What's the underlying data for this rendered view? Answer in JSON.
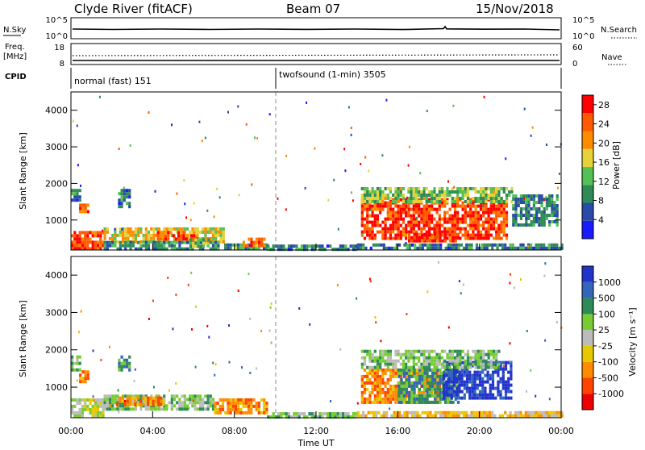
{
  "header": {
    "site": "Clyde River (fitACF)",
    "beam": "Beam 07",
    "date": "15/Nov/2018"
  },
  "strips": {
    "nsky": {
      "label": "N.Sky",
      "ticks_left": [
        "10^5",
        "10^0"
      ],
      "ticks_right": [
        "10^5",
        "10^0"
      ],
      "right_label": "N.Search"
    },
    "freq": {
      "label_top": "Freq.",
      "label_unit": "[MHz]",
      "ticks_left": [
        "18",
        "8"
      ],
      "ticks_right": [
        "60",
        "0"
      ],
      "right_label": "Nave"
    },
    "cpid": {
      "label": "CPID",
      "modes": [
        "normal (fast) 151",
        "twofsound (1-min) 3505"
      ]
    }
  },
  "colors": {
    "power": [
      "#1a1aff",
      "#2a4aa8",
      "#2e8b57",
      "#55c055",
      "#e6d23a",
      "#ff8c00",
      "#ff5a00",
      "#ff0000"
    ],
    "velocity": [
      "#2233cc",
      "#3366bb",
      "#2e8b57",
      "#77cc33",
      "#bbbbbb",
      "#e6c800",
      "#ff8c00",
      "#ff4400",
      "#ee0000"
    ]
  },
  "chart_data": [
    {
      "type": "heatmap",
      "name": "power",
      "ylabel": "Slant Range [km]",
      "yticks": [
        "1000",
        "2000",
        "3000",
        "4000"
      ],
      "ylim": [
        180,
        4500
      ],
      "xlim": [
        0,
        24
      ],
      "colorbar": {
        "label": "Power [dB]",
        "ticks": [
          "4",
          "8",
          "12",
          "16",
          "20",
          "24",
          "28"
        ],
        "range": [
          0,
          30
        ]
      },
      "cells": [
        {
          "t0": 0.0,
          "t1": 1.6,
          "r0": 250,
          "r1": 700,
          "v": 26
        },
        {
          "t0": 0.4,
          "t1": 0.9,
          "r0": 1200,
          "r1": 1450,
          "v": 22
        },
        {
          "t0": 0.0,
          "t1": 0.5,
          "r0": 1500,
          "r1": 1850,
          "v": 8
        },
        {
          "t0": 1.6,
          "t1": 7.5,
          "r0": 420,
          "r1": 800,
          "v": 17
        },
        {
          "t0": 1.6,
          "t1": 7.2,
          "r0": 250,
          "r1": 430,
          "v": 9
        },
        {
          "t0": 4.2,
          "t1": 6.2,
          "r0": 450,
          "r1": 700,
          "v": 25
        },
        {
          "t0": 2.3,
          "t1": 2.9,
          "r0": 1400,
          "r1": 1850,
          "v": 8
        },
        {
          "t0": 5.8,
          "t1": 6.8,
          "r0": 300,
          "r1": 500,
          "v": 12
        },
        {
          "t0": 7.5,
          "t1": 9.6,
          "r0": 250,
          "r1": 360,
          "v": 10
        },
        {
          "t0": 8.4,
          "t1": 9.5,
          "r0": 280,
          "r1": 520,
          "v": 23
        },
        {
          "t0": 9.6,
          "t1": 14.0,
          "r0": 220,
          "r1": 330,
          "v": 8
        },
        {
          "t0": 14.2,
          "t1": 21.3,
          "r0": 500,
          "r1": 1600,
          "v": 26
        },
        {
          "t0": 14.2,
          "t1": 21.6,
          "r0": 1500,
          "r1": 1900,
          "v": 14
        },
        {
          "t0": 16.5,
          "t1": 19.0,
          "r0": 400,
          "r1": 650,
          "v": 27
        },
        {
          "t0": 14.0,
          "t1": 24.0,
          "r0": 200,
          "r1": 360,
          "v": 8
        },
        {
          "t0": 21.6,
          "t1": 23.8,
          "r0": 900,
          "r1": 1700,
          "v": 9
        }
      ]
    },
    {
      "type": "heatmap",
      "name": "velocity",
      "ylabel": "Slant Range [km]",
      "yticks": [
        "1000",
        "2000",
        "3000",
        "4000"
      ],
      "ylim": [
        180,
        4500
      ],
      "xlim": [
        0,
        24
      ],
      "xticks": [
        "00:00",
        "04:00",
        "08:00",
        "12:00",
        "16:00",
        "20:00",
        "00:00"
      ],
      "xlabel": "Time UT",
      "colorbar": {
        "label": "Velocity [m s⁻¹]",
        "ticks": [
          "1000",
          "500",
          "100",
          "25",
          "-25",
          "-100",
          "-500",
          "-1000"
        ]
      },
      "cells": [
        {
          "t0": 0.0,
          "t1": 1.6,
          "r0": 250,
          "r1": 700,
          "v": 4
        },
        {
          "t0": 0.4,
          "t1": 0.9,
          "r0": 1150,
          "r1": 1450,
          "v": 6
        },
        {
          "t0": 0.0,
          "t1": 0.5,
          "r0": 1500,
          "r1": 1850,
          "v": 3
        },
        {
          "t0": 1.6,
          "t1": 7.0,
          "r0": 420,
          "r1": 800,
          "v": 3
        },
        {
          "t0": 2.2,
          "t1": 4.5,
          "r0": 500,
          "r1": 750,
          "v": 6
        },
        {
          "t0": 2.3,
          "t1": 2.9,
          "r0": 1450,
          "r1": 1850,
          "v": 2
        },
        {
          "t0": 7.0,
          "t1": 9.6,
          "r0": 300,
          "r1": 700,
          "v": 6
        },
        {
          "t0": 9.6,
          "t1": 14.0,
          "r0": 220,
          "r1": 330,
          "v": 3
        },
        {
          "t0": 14.2,
          "t1": 18.0,
          "r0": 600,
          "r1": 1500,
          "v": 6
        },
        {
          "t0": 16.0,
          "t1": 19.0,
          "r0": 550,
          "r1": 1500,
          "v": 2
        },
        {
          "t0": 18.2,
          "t1": 21.5,
          "r0": 700,
          "r1": 1700,
          "v": 0
        },
        {
          "t0": 14.2,
          "t1": 21.0,
          "r0": 1500,
          "r1": 2000,
          "v": 3
        },
        {
          "t0": 14.0,
          "t1": 24.0,
          "r0": 200,
          "r1": 360,
          "v": 5
        }
      ]
    }
  ]
}
